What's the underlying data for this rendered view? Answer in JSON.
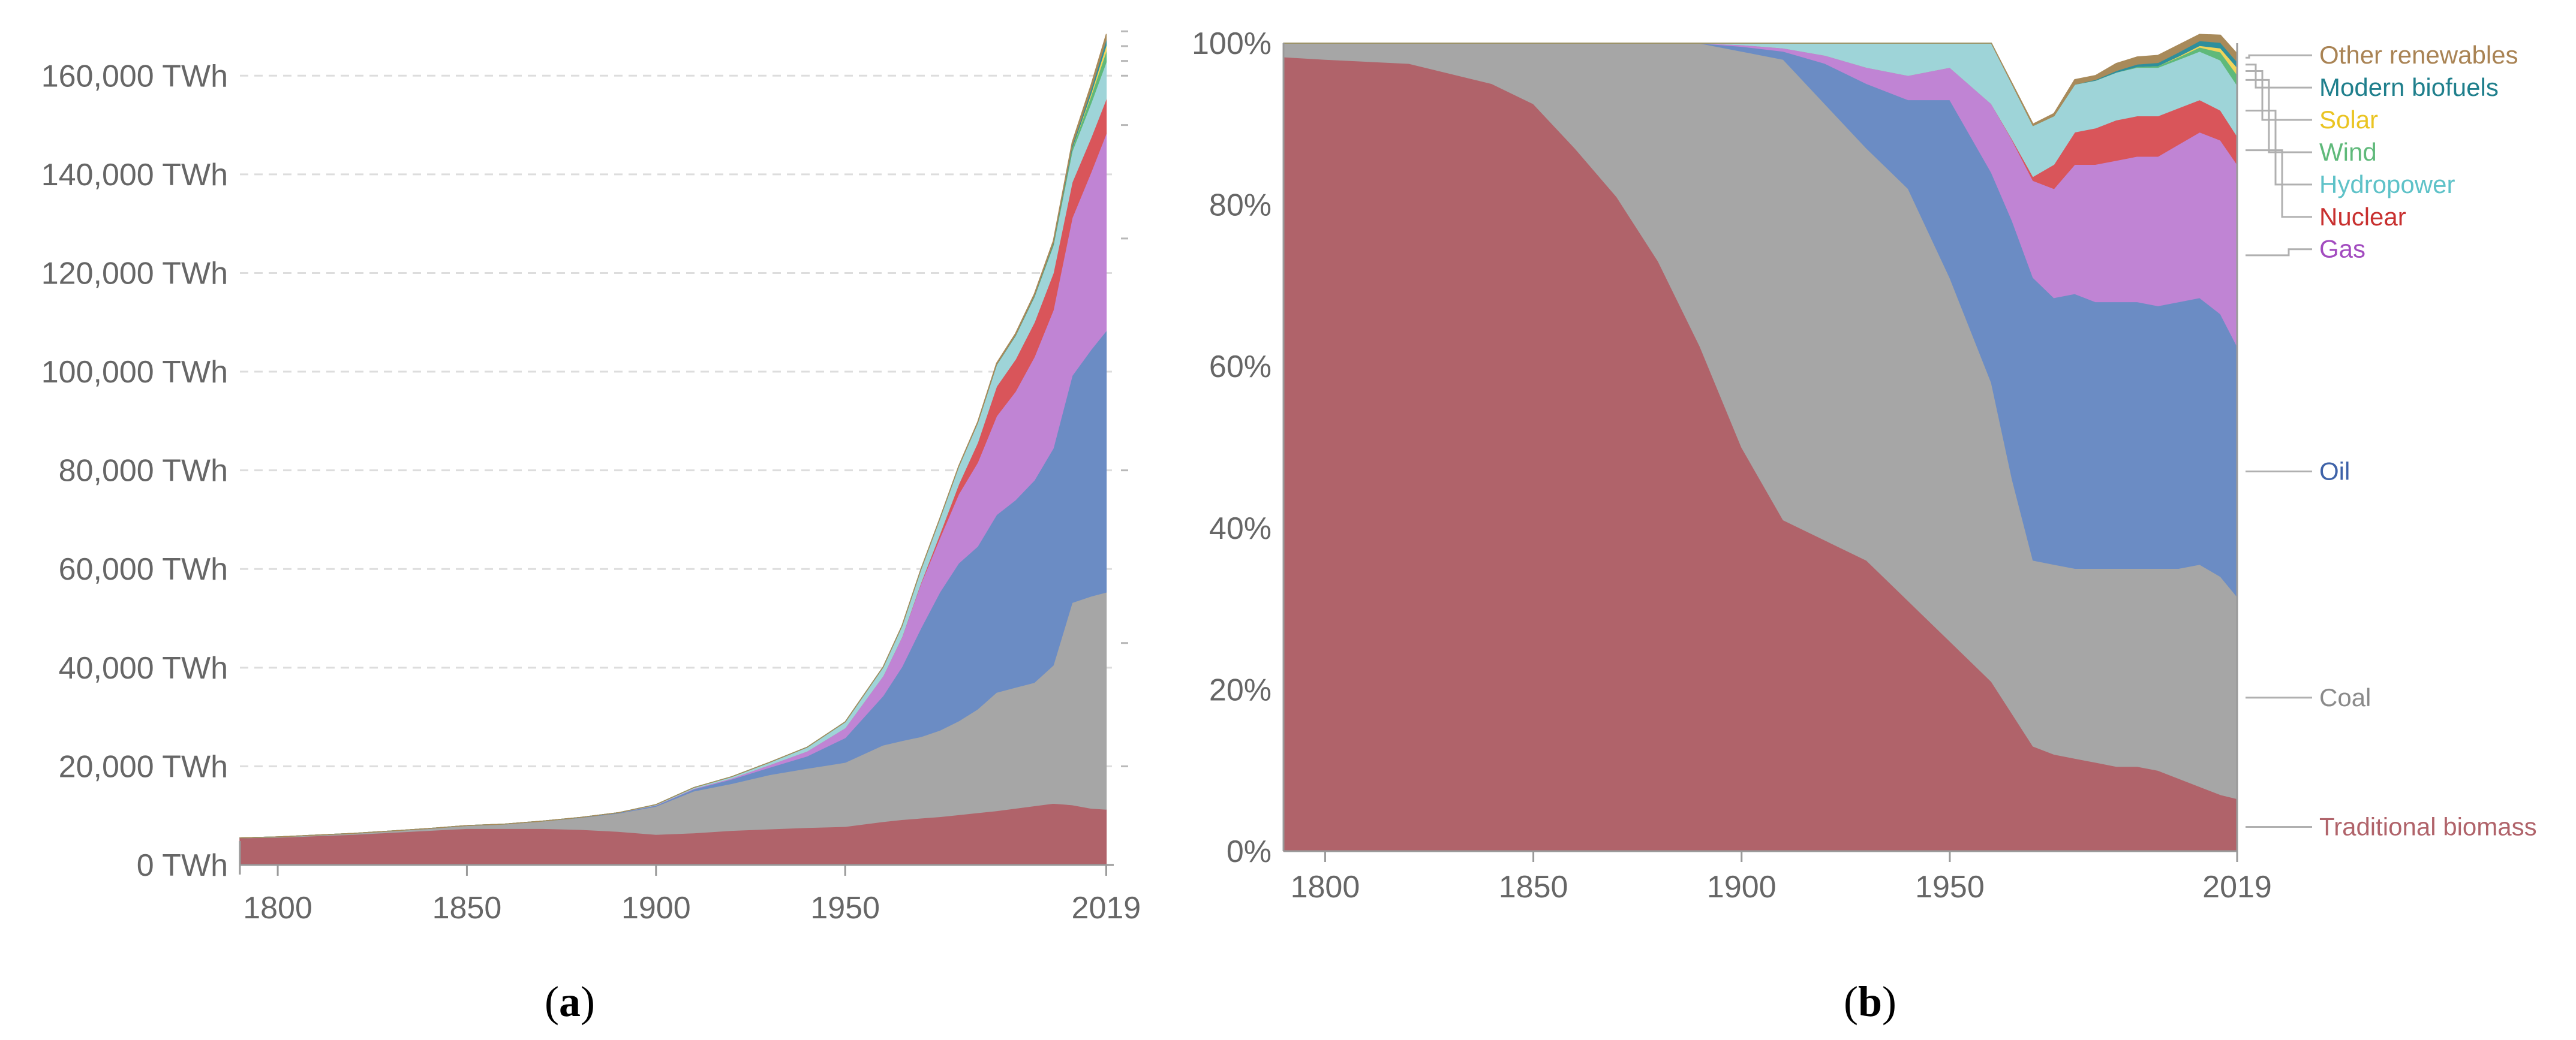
{
  "chart_data": [
    {
      "type": "area",
      "stacked": true,
      "title": "",
      "xlabel": "",
      "ylabel": "",
      "panel_label": {
        "open": "(",
        "letter": "a",
        "close": ")"
      },
      "xlim": [
        1790,
        2021
      ],
      "ylim": [
        0,
        170000
      ],
      "x_ticks": [
        {
          "value": 1800,
          "label": "1800"
        },
        {
          "value": 1850,
          "label": "1850"
        },
        {
          "value": 1900,
          "label": "1900"
        },
        {
          "value": 1950,
          "label": "1950"
        },
        {
          "value": 2019,
          "label": "2019"
        }
      ],
      "y_ticks": [
        {
          "value": 0,
          "label": "0 TWh"
        },
        {
          "value": 20000,
          "label": "20,000 TWh"
        },
        {
          "value": 40000,
          "label": "40,000 TWh"
        },
        {
          "value": 60000,
          "label": "60,000 TWh"
        },
        {
          "value": 80000,
          "label": "80,000 TWh"
        },
        {
          "value": 100000,
          "label": "100,000 TWh"
        },
        {
          "value": 120000,
          "label": "120,000 TWh"
        },
        {
          "value": 140000,
          "label": "140,000 TWh"
        },
        {
          "value": 160000,
          "label": "160,000 TWh"
        }
      ],
      "grid": true,
      "x": [
        1790,
        1800,
        1820,
        1840,
        1850,
        1860,
        1870,
        1880,
        1890,
        1900,
        1910,
        1920,
        1930,
        1940,
        1950,
        1960,
        1965,
        1970,
        1975,
        1980,
        1985,
        1990,
        1995,
        2000,
        2005,
        2010,
        2015,
        2019
      ],
      "series": [
        {
          "name": "Traditional biomass",
          "color": "#b0636a",
          "values": [
            5500,
            5600,
            6200,
            7000,
            7400,
            7400,
            7400,
            7200,
            6800,
            6200,
            6500,
            7000,
            7300,
            7600,
            7800,
            8800,
            9200,
            9500,
            9800,
            10200,
            10600,
            11000,
            11500,
            12000,
            12500,
            12200,
            11500,
            11300
          ]
        },
        {
          "name": "Coal",
          "color": "#a6a6a6",
          "values": [
            0,
            100,
            200,
            400,
            600,
            900,
            1500,
            2400,
            3700,
            5700,
            8500,
            9500,
            11000,
            12000,
            13000,
            15500,
            16000,
            16500,
            17500,
            19000,
            21000,
            24000,
            24500,
            25000,
            28000,
            41000,
            43000,
            44000
          ]
        },
        {
          "name": "Oil",
          "color": "#6b8cc4",
          "values": [
            0,
            0,
            0,
            0,
            0,
            0,
            0,
            50,
            100,
            200,
            400,
            900,
            1500,
            2500,
            5000,
            10000,
            15000,
            22000,
            28000,
            32000,
            33000,
            36000,
            38000,
            41000,
            44000,
            46000,
            50000,
            53000
          ]
        },
        {
          "name": "Gas",
          "color": "#c084d4",
          "values": [
            0,
            0,
            0,
            0,
            0,
            0,
            0,
            0,
            0,
            50,
            100,
            200,
            500,
            1000,
            2000,
            4000,
            6000,
            9000,
            11000,
            14000,
            17000,
            20000,
            22000,
            25000,
            28000,
            32000,
            36000,
            40000
          ]
        },
        {
          "name": "Nuclear",
          "color": "#d9555a",
          "values": [
            0,
            0,
            0,
            0,
            0,
            0,
            0,
            0,
            0,
            0,
            0,
            0,
            0,
            0,
            0,
            10,
            50,
            200,
            800,
            2000,
            4000,
            6000,
            6500,
            7000,
            7500,
            7200,
            7000,
            7000
          ]
        },
        {
          "name": "Hydropower",
          "color": "#9ed4d8",
          "values": [
            0,
            0,
            0,
            0,
            0,
            0,
            0,
            0,
            0,
            100,
            200,
            300,
            500,
            800,
            1200,
            1800,
            2200,
            2700,
            3100,
            3600,
            4000,
            4400,
            4800,
            5200,
            5600,
            6300,
            7000,
            7500
          ]
        },
        {
          "name": "Wind",
          "color": "#5fb97a",
          "values": [
            0,
            0,
            0,
            0,
            0,
            0,
            0,
            0,
            0,
            0,
            0,
            0,
            0,
            0,
            0,
            0,
            0,
            0,
            0,
            0,
            0,
            5,
            20,
            60,
            200,
            600,
            1500,
            2200
          ]
        },
        {
          "name": "Solar",
          "color": "#f0d45a",
          "values": [
            0,
            0,
            0,
            0,
            0,
            0,
            0,
            0,
            0,
            0,
            0,
            0,
            0,
            0,
            0,
            0,
            0,
            0,
            0,
            0,
            0,
            0,
            0,
            5,
            15,
            60,
            500,
            1200
          ]
        },
        {
          "name": "Modern biofuels",
          "color": "#2e8f9c",
          "values": [
            0,
            0,
            0,
            0,
            0,
            0,
            0,
            0,
            0,
            0,
            0,
            0,
            0,
            0,
            0,
            0,
            0,
            0,
            0,
            0,
            20,
            60,
            100,
            150,
            250,
            500,
            800,
            1100
          ]
        },
        {
          "name": "Other renewables",
          "color": "#a88a5a",
          "values": [
            0,
            0,
            0,
            0,
            0,
            0,
            0,
            0,
            0,
            0,
            0,
            0,
            0,
            0,
            0,
            0,
            10,
            20,
            40,
            80,
            150,
            250,
            300,
            350,
            450,
            650,
            900,
            1100
          ]
        }
      ]
    },
    {
      "type": "area",
      "stacked": true,
      "normalized": true,
      "title": "",
      "xlabel": "",
      "ylabel": "",
      "panel_label": {
        "open": "(",
        "letter": "b",
        "close": ")"
      },
      "xlim": [
        1790,
        2019
      ],
      "ylim": [
        0,
        100
      ],
      "x_ticks": [
        {
          "value": 1800,
          "label": "1800"
        },
        {
          "value": 1850,
          "label": "1850"
        },
        {
          "value": 1900,
          "label": "1900"
        },
        {
          "value": 1950,
          "label": "1950"
        },
        {
          "value": 2019,
          "label": "2019"
        }
      ],
      "y_ticks": [
        {
          "value": 0,
          "label": "0%"
        },
        {
          "value": 20,
          "label": "20%"
        },
        {
          "value": 40,
          "label": "40%"
        },
        {
          "value": 60,
          "label": "60%"
        },
        {
          "value": 80,
          "label": "80%"
        },
        {
          "value": 100,
          "label": "100%"
        }
      ],
      "grid": false,
      "legend_position": "right",
      "x": [
        1790,
        1800,
        1820,
        1840,
        1850,
        1860,
        1870,
        1880,
        1890,
        1900,
        1910,
        1920,
        1930,
        1940,
        1950,
        1960,
        1965,
        1970,
        1975,
        1980,
        1985,
        1990,
        1995,
        2000,
        2005,
        2010,
        2015,
        2019
      ],
      "series": [
        {
          "name": "Traditional biomass",
          "label": "Traditional biomass",
          "color": "#b0636a",
          "label_color": "#b0636a",
          "label_value": 3,
          "values": [
            98.3,
            98.0,
            97.5,
            95.0,
            92.5,
            87.0,
            81.0,
            73.0,
            62.5,
            50.0,
            41.0,
            38.5,
            36.0,
            31.0,
            26.0,
            21.0,
            17.0,
            13.0,
            12.0,
            11.5,
            11.0,
            10.5,
            10.5,
            10.0,
            9.0,
            8.0,
            7.0,
            6.5
          ]
        },
        {
          "name": "Coal",
          "label": "Coal",
          "color": "#a6a6a6",
          "label_color": "#8a8a8a",
          "label_value": 19,
          "values": [
            1.7,
            2.0,
            2.5,
            5.0,
            7.5,
            13.0,
            19.0,
            27.0,
            37.5,
            49.0,
            57.0,
            54.0,
            51.0,
            51.0,
            45.0,
            37.0,
            29.0,
            23.0,
            23.5,
            23.5,
            24.0,
            24.5,
            24.5,
            25.0,
            26.0,
            27.5,
            27.0,
            25.0
          ]
        },
        {
          "name": "Oil",
          "label": "Oil",
          "color": "#6b8cc4",
          "label_color": "#3e62a8",
          "label_value": 47,
          "values": [
            0,
            0,
            0,
            0,
            0,
            0,
            0,
            0,
            0,
            0.6,
            1.0,
            5.0,
            8.0,
            11.0,
            22.0,
            26.0,
            32.0,
            35.0,
            33.0,
            34.0,
            33.0,
            33.0,
            33.0,
            32.5,
            33.0,
            33.0,
            32.5,
            31.0
          ]
        },
        {
          "name": "Gas",
          "label": "Gas",
          "color": "#c084d4",
          "label_color": "#a24bbf",
          "label_value": 74.5,
          "values": [
            0,
            0,
            0,
            0,
            0,
            0,
            0,
            0,
            0,
            0.2,
            0.4,
            1.0,
            2.0,
            3.0,
            4.0,
            8.5,
            10.0,
            12.0,
            13.5,
            16.0,
            17.0,
            17.5,
            18.0,
            18.5,
            19.5,
            20.5,
            21.5,
            22.5
          ]
        },
        {
          "name": "Nuclear",
          "label": "Nuclear",
          "color": "#d9555a",
          "label_color": "#c8302f",
          "label_value": 78.5,
          "values": [
            0,
            0,
            0,
            0,
            0,
            0,
            0,
            0,
            0,
            0,
            0,
            0,
            0,
            0,
            0,
            0,
            0.1,
            0.5,
            3.0,
            4.0,
            4.5,
            5.0,
            5.0,
            5.0,
            4.5,
            4.0,
            3.7,
            3.5
          ]
        },
        {
          "name": "Hydropower",
          "label": "Hydropower",
          "color": "#9ed4d8",
          "label_color": "#5ec2c8",
          "label_value": 82.5,
          "values": [
            0,
            0,
            0,
            0,
            0,
            0,
            0,
            0,
            0,
            0.2,
            0.6,
            1.5,
            3.0,
            4.0,
            3.0,
            7.5,
            6.8,
            6.3,
            6.0,
            5.9,
            5.9,
            5.9,
            6.0,
            6.0,
            6.0,
            6.0,
            6.2,
            6.3
          ]
        },
        {
          "name": "Wind",
          "label": "Wind",
          "color": "#5fb97a",
          "label_color": "#5fb97a",
          "label_value": 86.5,
          "values": [
            0,
            0,
            0,
            0,
            0,
            0,
            0,
            0,
            0,
            0,
            0,
            0,
            0,
            0,
            0,
            0,
            0,
            0,
            0,
            0,
            0,
            0,
            0.1,
            0.2,
            0.3,
            0.5,
            1.0,
            1.3
          ]
        },
        {
          "name": "Solar",
          "label": "Solar",
          "color": "#f0d45a",
          "label_color": "#eac422",
          "label_value": 90.5,
          "values": [
            0,
            0,
            0,
            0,
            0,
            0,
            0,
            0,
            0,
            0,
            0,
            0,
            0,
            0,
            0,
            0,
            0,
            0,
            0,
            0,
            0,
            0,
            0,
            0,
            0.1,
            0.2,
            0.5,
            0.9
          ]
        },
        {
          "name": "Modern biofuels",
          "label": "Modern biofuels",
          "color": "#2e8f9c",
          "label_color": "#1f7f8c",
          "label_value": 94.5,
          "values": [
            0,
            0,
            0,
            0,
            0,
            0,
            0,
            0,
            0,
            0,
            0,
            0,
            0,
            0,
            0,
            0,
            0,
            0,
            0,
            0,
            0.1,
            0.2,
            0.3,
            0.4,
            0.5,
            0.6,
            0.7,
            0.7
          ]
        },
        {
          "name": "Other renewables",
          "label": "Other renewables",
          "color": "#a88a5a",
          "label_color": "#a98354",
          "label_value": 98.5,
          "values": [
            0,
            0,
            0,
            0,
            0,
            0,
            0,
            0,
            0,
            0,
            0,
            0,
            0,
            0,
            0,
            0,
            0.1,
            0.2,
            0.3,
            0.6,
            0.5,
            0.9,
            0.9,
            0.9,
            0.9,
            0.8,
            0.9,
            1.0
          ]
        }
      ]
    }
  ]
}
